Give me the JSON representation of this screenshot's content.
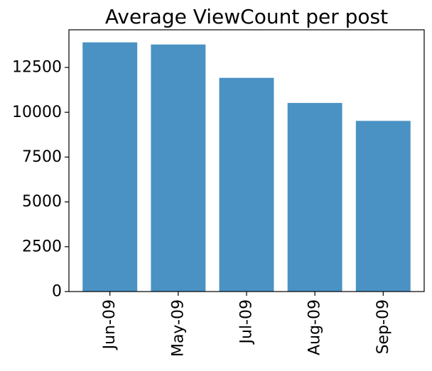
{
  "chart_data": {
    "type": "bar",
    "title": "Average ViewCount per post",
    "xlabel": "",
    "ylabel": "",
    "categories": [
      "Jun-09",
      "May-09",
      "Jul-09",
      "Aug-09",
      "Sep-09"
    ],
    "values": [
      13900,
      13780,
      11920,
      10520,
      9520
    ],
    "ylim": [
      0,
      14600
    ],
    "yticks": [
      0,
      2500,
      5000,
      7500,
      10000,
      12500
    ],
    "ytick_labels": [
      "0",
      "2500",
      "5000",
      "7500",
      "10000",
      "12500"
    ],
    "grid": false,
    "legend": "none",
    "bar_color": "#4a92c4"
  }
}
